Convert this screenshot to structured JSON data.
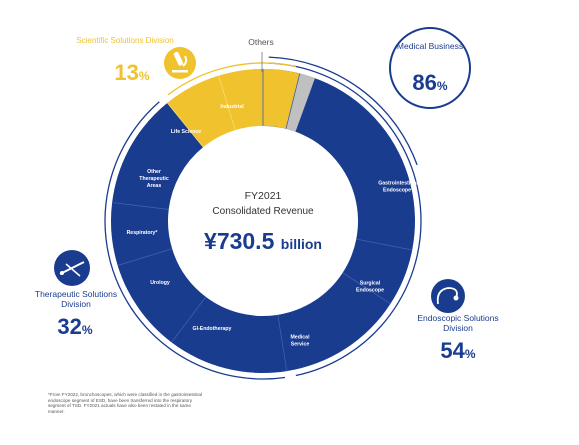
{
  "chart_data": {
    "type": "pie",
    "title": "FY2021",
    "subtitle": "Consolidated Revenue",
    "total": {
      "prefix": "¥",
      "value": "730.5",
      "unit": "billion"
    },
    "segments": [
      {
        "label": "Gastrointestinal Endoscope*",
        "color": "#1a3c8f"
      },
      {
        "label": "Surgical Endoscope",
        "color": "#1a3c8f"
      },
      {
        "label": "Medical Service",
        "color": "#1a3c8f"
      },
      {
        "label": "GI-Endotherapy",
        "color": "#1a3c8f"
      },
      {
        "label": "Urology",
        "color": "#1a3c8f"
      },
      {
        "label": "Respiratory*",
        "color": "#1a3c8f"
      },
      {
        "label": "Other Therapeutic Areas",
        "color": "#1a3c8f"
      },
      {
        "label": "Life Science",
        "color": "#f0c22e"
      },
      {
        "label": "Industrial",
        "color": "#f0c22e"
      },
      {
        "label": "Others",
        "color": "#c0c0c0"
      }
    ],
    "groups": [
      {
        "name": "Medical Business",
        "percent": "86",
        "unit": "%"
      },
      {
        "name": "Endoscopic Solutions Division",
        "percent": "54",
        "unit": "%"
      },
      {
        "name": "Therapeutic Solutions Division",
        "percent": "32",
        "unit": "%"
      },
      {
        "name": "Scientific Solutions Division",
        "percent": "13",
        "unit": "%"
      }
    ],
    "others_label": "Others",
    "footnote": "*From FY2022, bronchoscopes, which were classified in the gastrointestinal endoscope segment of ESD, have been transferred into the respiratory segment of TSD. FY2021 actuals have also been restated in the same manner."
  },
  "colors": {
    "blue": "#1a3c8f",
    "yellow": "#f0c22e",
    "gray": "#c0c0c0"
  },
  "icons": [
    "microscope-icon",
    "endoscope-icon",
    "surgical-tool-icon"
  ]
}
